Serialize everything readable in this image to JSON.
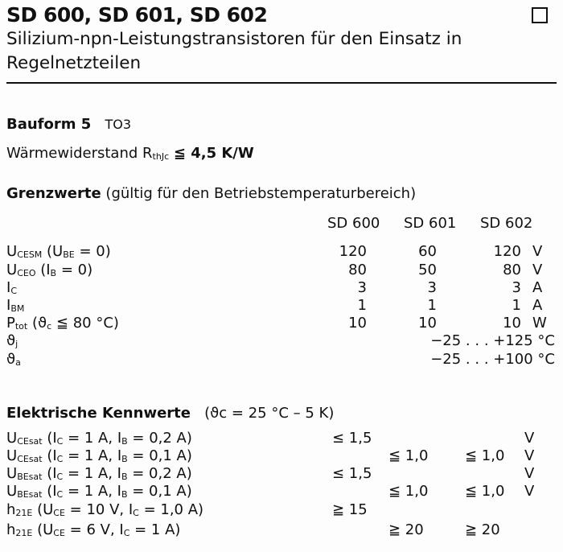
{
  "header": {
    "title": "SD 600, SD 601, SD 602",
    "subtitle_line1": "Silizium-npn-Leistungstransistoren für den Einsatz in",
    "subtitle_line2": "Regelnetzteilen"
  },
  "bauform": {
    "label": "Bauform 5",
    "value": "TO3"
  },
  "thermal": {
    "label": "Wärmewiderstand",
    "symbol": "R",
    "symbol_sub": "thJc",
    "value": "≦ 4,5 K/W"
  },
  "grenzwerte": {
    "heading": "Grenzwerte",
    "note": "(gültig für den Betriebstemperaturbereich)",
    "columns": [
      "SD 600",
      "SD 601",
      "SD 602"
    ],
    "rows": [
      {
        "label": [
          [
            "U",
            ""
          ],
          [
            "CESM",
            "s"
          ],
          [
            " (U",
            ""
          ],
          [
            "BE",
            "s"
          ],
          [
            " = 0)",
            ""
          ]
        ],
        "values": [
          "120",
          "60",
          "120"
        ],
        "unit": "V"
      },
      {
        "label": [
          [
            "U",
            ""
          ],
          [
            "CEO",
            "s"
          ],
          [
            "  (I",
            ""
          ],
          [
            "B",
            "s"
          ],
          [
            " = 0)",
            ""
          ]
        ],
        "values": [
          "80",
          "50",
          "80"
        ],
        "unit": "V"
      },
      {
        "label": [
          [
            "I",
            ""
          ],
          [
            "C",
            "s"
          ]
        ],
        "values": [
          "3",
          "3",
          "3"
        ],
        "unit": "A"
      },
      {
        "label": [
          [
            "I",
            ""
          ],
          [
            "BM",
            "s"
          ]
        ],
        "values": [
          "1",
          "1",
          "1"
        ],
        "unit": "A"
      },
      {
        "label": [
          [
            "P",
            ""
          ],
          [
            "tot",
            "s"
          ],
          [
            "     (ϑ",
            ""
          ],
          [
            "c",
            "s"
          ],
          [
            "  ≦ 80 °C)",
            ""
          ]
        ],
        "values": [
          "10",
          "10",
          "10"
        ],
        "unit": "W"
      },
      {
        "label": [
          [
            "ϑ",
            ""
          ],
          [
            "j",
            "s"
          ]
        ],
        "range": "−25 . . . +125 °C"
      },
      {
        "label": [
          [
            "ϑ",
            ""
          ],
          [
            "a",
            "s"
          ]
        ],
        "range": "−25 . . . +100 °C"
      }
    ]
  },
  "kennwerte": {
    "heading": "Elektrische Kennwerte",
    "condition": "(ϑc = 25 °C – 5 K)",
    "rows": [
      {
        "label": [
          [
            "U",
            ""
          ],
          [
            "CEsat",
            "s"
          ],
          [
            "  (I",
            ""
          ],
          [
            "C",
            "s"
          ],
          [
            " = 1 A,  I",
            ""
          ],
          [
            "B",
            "s"
          ],
          [
            " = 0,2 A)",
            ""
          ]
        ],
        "values": [
          "≤ 1,5",
          "",
          ""
        ],
        "unit": "V"
      },
      {
        "label": [
          [
            "U",
            ""
          ],
          [
            "CEsat",
            "s"
          ],
          [
            " (I",
            ""
          ],
          [
            "C",
            "s"
          ],
          [
            " = 1 A, I",
            ""
          ],
          [
            "B",
            "s"
          ],
          [
            " = 0,1 A)",
            ""
          ]
        ],
        "values": [
          "",
          "≦ 1,0",
          "≦ 1,0"
        ],
        "unit": "V"
      },
      {
        "label": [
          [
            "U",
            ""
          ],
          [
            "BEsat",
            "s"
          ],
          [
            "  (I",
            ""
          ],
          [
            "C",
            "s"
          ],
          [
            " = 1 A,  I",
            ""
          ],
          [
            "B",
            "s"
          ],
          [
            " = 0,2 A)",
            ""
          ]
        ],
        "values": [
          "≤ 1,5",
          "",
          ""
        ],
        "unit": "V"
      },
      {
        "label": [
          [
            "U",
            ""
          ],
          [
            "BEsat",
            "s"
          ],
          [
            " (I",
            ""
          ],
          [
            "C",
            "s"
          ],
          [
            " = 1 A, I",
            ""
          ],
          [
            "B",
            "s"
          ],
          [
            " = 0,1 A)",
            ""
          ]
        ],
        "values": [
          "",
          "≦ 1,0",
          "≦ 1,0"
        ],
        "unit": "V"
      },
      {
        "label": [
          [
            "h",
            ""
          ],
          [
            "21E",
            "s"
          ],
          [
            "    (U",
            ""
          ],
          [
            "CE",
            "s"
          ],
          [
            " = 10 V, I",
            ""
          ],
          [
            "C",
            "s"
          ],
          [
            " = 1,0 A)",
            ""
          ]
        ],
        "values": [
          "≧ 15",
          "",
          ""
        ],
        "unit": ""
      },
      {
        "label": [
          [
            "h",
            ""
          ],
          [
            "21E",
            "s"
          ],
          [
            " (U",
            ""
          ],
          [
            "CE",
            "s"
          ],
          [
            " = 6 V, I",
            ""
          ],
          [
            "C",
            "s"
          ],
          [
            "  = 1 A)",
            ""
          ]
        ],
        "values": [
          "",
          "≧ 20",
          "≧ 20"
        ],
        "unit": ""
      }
    ]
  }
}
